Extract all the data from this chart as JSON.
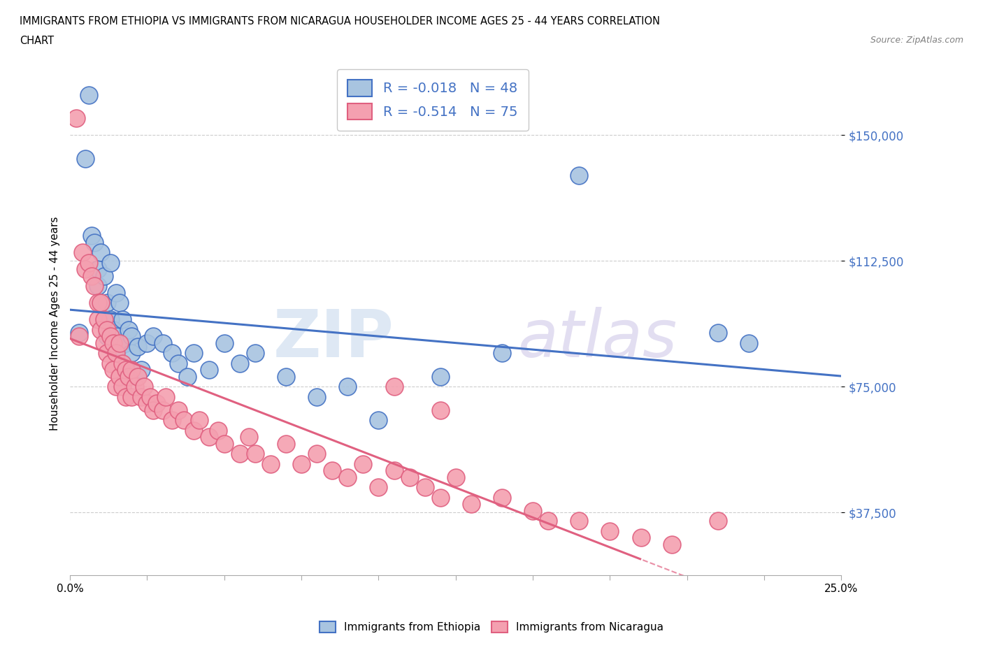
{
  "title_line1": "IMMIGRANTS FROM ETHIOPIA VS IMMIGRANTS FROM NICARAGUA HOUSEHOLDER INCOME AGES 25 - 44 YEARS CORRELATION",
  "title_line2": "CHART",
  "source": "Source: ZipAtlas.com",
  "ylabel": "Householder Income Ages 25 - 44 years",
  "xlim": [
    0.0,
    0.25
  ],
  "ylim": [
    18750,
    168750
  ],
  "yticks": [
    37500,
    75000,
    112500,
    150000
  ],
  "ytick_labels": [
    "$37,500",
    "$75,000",
    "$112,500",
    "$150,000"
  ],
  "xticks": [
    0.0,
    0.025,
    0.05,
    0.075,
    0.1,
    0.125,
    0.15,
    0.175,
    0.2,
    0.225,
    0.25
  ],
  "xtick_labels": [
    "0.0%",
    "",
    "",
    "",
    "",
    "",
    "",
    "",
    "",
    "",
    "25.0%"
  ],
  "r_ethiopia": -0.018,
  "n_ethiopia": 48,
  "r_nicaragua": -0.514,
  "n_nicaragua": 75,
  "color_ethiopia": "#a8c4e0",
  "color_nicaragua": "#f4a0b0",
  "line_color_ethiopia": "#4472c4",
  "line_color_nicaragua": "#e06080",
  "watermark_zip": "ZIP",
  "watermark_atlas": "atlas",
  "ethiopia_x": [
    0.003,
    0.005,
    0.006,
    0.007,
    0.008,
    0.009,
    0.009,
    0.01,
    0.01,
    0.011,
    0.011,
    0.012,
    0.012,
    0.013,
    0.013,
    0.014,
    0.014,
    0.015,
    0.015,
    0.016,
    0.016,
    0.017,
    0.018,
    0.019,
    0.02,
    0.02,
    0.022,
    0.023,
    0.025,
    0.027,
    0.03,
    0.033,
    0.035,
    0.038,
    0.04,
    0.045,
    0.05,
    0.055,
    0.06,
    0.07,
    0.08,
    0.09,
    0.1,
    0.12,
    0.14,
    0.165,
    0.21,
    0.22
  ],
  "ethiopia_y": [
    91000,
    143000,
    162000,
    120000,
    118000,
    110000,
    105000,
    100000,
    115000,
    108000,
    95000,
    100000,
    90000,
    112000,
    95000,
    92000,
    88000,
    103000,
    90000,
    100000,
    87000,
    95000,
    88000,
    92000,
    90000,
    85000,
    87000,
    80000,
    88000,
    90000,
    88000,
    85000,
    82000,
    78000,
    85000,
    80000,
    88000,
    82000,
    85000,
    78000,
    72000,
    75000,
    65000,
    78000,
    85000,
    138000,
    91000,
    88000
  ],
  "nicaragua_x": [
    0.002,
    0.004,
    0.005,
    0.006,
    0.007,
    0.008,
    0.009,
    0.009,
    0.01,
    0.01,
    0.011,
    0.011,
    0.012,
    0.012,
    0.013,
    0.013,
    0.014,
    0.014,
    0.015,
    0.015,
    0.016,
    0.016,
    0.017,
    0.017,
    0.018,
    0.018,
    0.019,
    0.02,
    0.02,
    0.021,
    0.022,
    0.023,
    0.024,
    0.025,
    0.026,
    0.027,
    0.028,
    0.03,
    0.031,
    0.033,
    0.035,
    0.037,
    0.04,
    0.042,
    0.045,
    0.048,
    0.05,
    0.055,
    0.058,
    0.06,
    0.065,
    0.07,
    0.075,
    0.08,
    0.085,
    0.09,
    0.095,
    0.1,
    0.105,
    0.11,
    0.115,
    0.12,
    0.125,
    0.13,
    0.14,
    0.15,
    0.155,
    0.165,
    0.175,
    0.185,
    0.195,
    0.12,
    0.003,
    0.105,
    0.21
  ],
  "nicaragua_y": [
    155000,
    115000,
    110000,
    112000,
    108000,
    105000,
    100000,
    95000,
    100000,
    92000,
    95000,
    88000,
    92000,
    85000,
    90000,
    82000,
    88000,
    80000,
    85000,
    75000,
    88000,
    78000,
    82000,
    75000,
    80000,
    72000,
    78000,
    80000,
    72000,
    75000,
    78000,
    72000,
    75000,
    70000,
    72000,
    68000,
    70000,
    68000,
    72000,
    65000,
    68000,
    65000,
    62000,
    65000,
    60000,
    62000,
    58000,
    55000,
    60000,
    55000,
    52000,
    58000,
    52000,
    55000,
    50000,
    48000,
    52000,
    45000,
    50000,
    48000,
    45000,
    42000,
    48000,
    40000,
    42000,
    38000,
    35000,
    35000,
    32000,
    30000,
    28000,
    68000,
    90000,
    75000,
    35000
  ]
}
